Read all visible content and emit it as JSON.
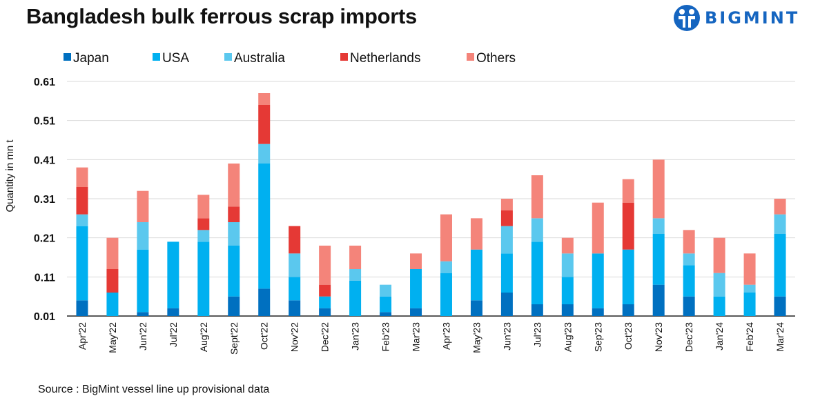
{
  "header": {
    "title": "Bangladesh bulk ferrous scrap imports",
    "logo_text": "BIGMINT",
    "logo_color": "#1565C0"
  },
  "footer": {
    "source": "Source : BigMint vessel line up provisional data"
  },
  "chart_data": {
    "type": "bar",
    "stacked": true,
    "title": "Bangladesh bulk ferrous scrap imports",
    "xlabel": "",
    "ylabel": "Quantity in mn t",
    "ylim": [
      0.01,
      0.61
    ],
    "yticks": [
      "0.01",
      "0.11",
      "0.21",
      "0.31",
      "0.41",
      "0.51",
      "0.61"
    ],
    "grid": true,
    "legend_position": "top",
    "categories": [
      "Apr'22",
      "May'22",
      "Jun'22",
      "Jul'22",
      "Aug'22",
      "Sept'22",
      "Oct'22",
      "Nov'22",
      "Dec'22",
      "Jan'23",
      "Feb'23",
      "Mar'23",
      "Apr'23",
      "May'23",
      "Jun'23",
      "Jul'23",
      "Aug'23",
      "Sep'23",
      "Oct'23",
      "Nov'23",
      "Dec'23",
      "Jan'24",
      "Feb'24",
      "Mar'24"
    ],
    "series": [
      {
        "name": "Japan",
        "color": "#0070C0",
        "values": [
          0.04,
          0,
          0.01,
          0.02,
          0,
          0.05,
          0.07,
          0.04,
          0.02,
          0,
          0.01,
          0.02,
          0,
          0.04,
          0.06,
          0.03,
          0.03,
          0.02,
          0.03,
          0.08,
          0.05,
          0,
          0,
          0.05
        ]
      },
      {
        "name": "USA",
        "color": "#00B0F0",
        "values": [
          0.19,
          0.06,
          0.16,
          0.17,
          0.19,
          0.13,
          0.32,
          0.06,
          0.03,
          0.09,
          0.04,
          0.1,
          0.11,
          0.13,
          0.1,
          0.16,
          0.07,
          0.14,
          0.14,
          0.13,
          0.08,
          0.05,
          0.06,
          0.16
        ]
      },
      {
        "name": "Australia",
        "color": "#5BC8EE",
        "values": [
          0.03,
          0,
          0.07,
          0,
          0.03,
          0.06,
          0.05,
          0.06,
          0,
          0.03,
          0.03,
          0,
          0.03,
          0,
          0.07,
          0.06,
          0.06,
          0,
          0,
          0.04,
          0.03,
          0.06,
          0.02,
          0.05
        ]
      },
      {
        "name": "Netherlands",
        "color": "#E53935",
        "values": [
          0.07,
          0.06,
          0,
          0,
          0.03,
          0.04,
          0.1,
          0.07,
          0.03,
          0,
          0,
          0,
          0,
          0,
          0.04,
          0,
          0,
          0,
          0.12,
          0,
          0,
          0,
          0,
          0
        ]
      },
      {
        "name": "Others",
        "color": "#F4847A",
        "values": [
          0.05,
          0.08,
          0.08,
          0,
          0.06,
          0.11,
          0.03,
          0,
          0.1,
          0.06,
          0,
          0.04,
          0.12,
          0.08,
          0.03,
          0.11,
          0.04,
          0.13,
          0.06,
          0.15,
          0.06,
          0.09,
          0.08,
          0.04
        ]
      }
    ]
  }
}
